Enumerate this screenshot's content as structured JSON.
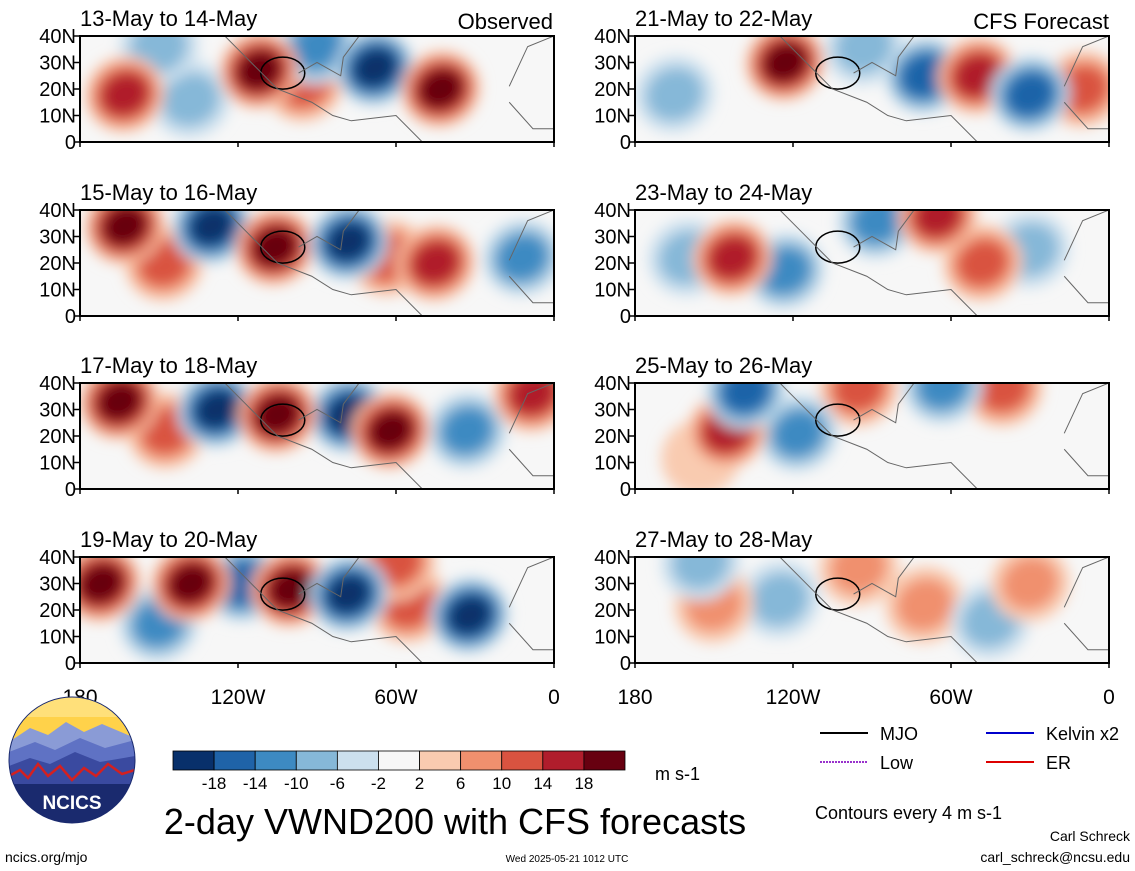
{
  "title": "2-day VWND200 with CFS forecasts",
  "left_column_label": "Observed",
  "right_column_label": "CFS Forecast",
  "logo_text": "NCICS",
  "footer": {
    "url": "ncics.org/mjo",
    "timestamp": "Wed 2025-05-21 1012 UTC",
    "author": "Carl Schreck",
    "email": "carl_schreck@ncsu.edu"
  },
  "colorbar": {
    "unit": "m s-1",
    "tick_labels": [
      "-18",
      "-14",
      "-10",
      "-6",
      "-2",
      "2",
      "6",
      "10",
      "14",
      "18"
    ],
    "colors": [
      "#08306b",
      "#1f63a8",
      "#3d8ac2",
      "#86b8d8",
      "#cce0ee",
      "#f7f7f7",
      "#f9cbb0",
      "#f0906e",
      "#d95340",
      "#b01d2c",
      "#670010"
    ]
  },
  "legend": {
    "items": [
      {
        "label": "MJO",
        "color": "#000000"
      },
      {
        "label": "Kelvin x2",
        "color": "#0000cc"
      },
      {
        "label": "Low",
        "color": "#9932cc"
      },
      {
        "label": "ER",
        "color": "#dd0000"
      }
    ],
    "note": "Contours every 4 m s-1"
  },
  "chart_data": {
    "type": "heatmap",
    "variable": "VWND200",
    "x_ticks": [
      "180",
      "120W",
      "60W",
      "0"
    ],
    "y_ticks": [
      "40N",
      "30N",
      "20N",
      "10N",
      "0"
    ],
    "xlim_deg_east": [
      180,
      360
    ],
    "ylim_deg_north": [
      0,
      40
    ],
    "panels": [
      {
        "period": "13-May to 14-May",
        "source": "Observed",
        "anomalies": [
          {
            "lon": -163,
            "lat": 18,
            "value": 16
          },
          {
            "lon": -112,
            "lat": 27,
            "value": 18
          },
          {
            "lon": -95,
            "lat": 22,
            "value": 10
          },
          {
            "lon": -68,
            "lat": 28,
            "value": -20
          },
          {
            "lon": -43,
            "lat": 20,
            "value": 20
          },
          {
            "lon": -138,
            "lat": 16,
            "value": -8
          },
          {
            "lon": -90,
            "lat": 36,
            "value": -12
          },
          {
            "lon": -150,
            "lat": 36,
            "value": -8
          }
        ]
      },
      {
        "period": "15-May to 16-May",
        "source": "Observed",
        "anomalies": [
          {
            "lon": -163,
            "lat": 34,
            "value": 18
          },
          {
            "lon": -130,
            "lat": 34,
            "value": -18
          },
          {
            "lon": -106,
            "lat": 26,
            "value": 18
          },
          {
            "lon": -78,
            "lat": 28,
            "value": -18
          },
          {
            "lon": -63,
            "lat": 22,
            "value": 10
          },
          {
            "lon": -45,
            "lat": 20,
            "value": 14
          },
          {
            "lon": -12,
            "lat": 22,
            "value": -12
          },
          {
            "lon": -148,
            "lat": 20,
            "value": 10
          }
        ]
      },
      {
        "period": "17-May to 18-May",
        "source": "Observed",
        "anomalies": [
          {
            "lon": -165,
            "lat": 33,
            "value": 20
          },
          {
            "lon": -128,
            "lat": 30,
            "value": -18
          },
          {
            "lon": -105,
            "lat": 28,
            "value": 20
          },
          {
            "lon": -78,
            "lat": 28,
            "value": -18
          },
          {
            "lon": -62,
            "lat": 22,
            "value": 20
          },
          {
            "lon": -33,
            "lat": 22,
            "value": -10
          },
          {
            "lon": -147,
            "lat": 22,
            "value": 10
          },
          {
            "lon": -8,
            "lat": 36,
            "value": 14
          }
        ]
      },
      {
        "period": "19-May to 20-May",
        "source": "Observed",
        "anomalies": [
          {
            "lon": -172,
            "lat": 30,
            "value": 18
          },
          {
            "lon": -138,
            "lat": 30,
            "value": 18
          },
          {
            "lon": -118,
            "lat": 30,
            "value": -14
          },
          {
            "lon": -100,
            "lat": 28,
            "value": 18
          },
          {
            "lon": -78,
            "lat": 26,
            "value": -18
          },
          {
            "lon": -55,
            "lat": 22,
            "value": 12
          },
          {
            "lon": -32,
            "lat": 18,
            "value": -18
          },
          {
            "lon": -150,
            "lat": 15,
            "value": -10
          },
          {
            "lon": -60,
            "lat": 38,
            "value": 12
          }
        ]
      },
      {
        "period": "21-May to 22-May",
        "source": "CFS Forecast",
        "anomalies": [
          {
            "lon": -123,
            "lat": 30,
            "value": 18
          },
          {
            "lon": -70,
            "lat": 25,
            "value": -16
          },
          {
            "lon": -50,
            "lat": 25,
            "value": 16
          },
          {
            "lon": -30,
            "lat": 18,
            "value": -16
          },
          {
            "lon": -93,
            "lat": 36,
            "value": -8
          },
          {
            "lon": -10,
            "lat": 20,
            "value": 10
          },
          {
            "lon": -165,
            "lat": 18,
            "value": -6
          }
        ]
      },
      {
        "period": "23-May to 24-May",
        "source": "CFS Forecast",
        "anomalies": [
          {
            "lon": -143,
            "lat": 22,
            "value": 16
          },
          {
            "lon": -123,
            "lat": 17,
            "value": -10
          },
          {
            "lon": -65,
            "lat": 38,
            "value": 14
          },
          {
            "lon": -48,
            "lat": 20,
            "value": 10
          },
          {
            "lon": -160,
            "lat": 22,
            "value": -6
          },
          {
            "lon": -88,
            "lat": 36,
            "value": -12
          },
          {
            "lon": -30,
            "lat": 25,
            "value": -6
          }
        ]
      },
      {
        "period": "25-May to 26-May",
        "source": "CFS Forecast",
        "anomalies": [
          {
            "lon": -145,
            "lat": 22,
            "value": 14
          },
          {
            "lon": -118,
            "lat": 21,
            "value": -12
          },
          {
            "lon": -138,
            "lat": 37,
            "value": -14
          },
          {
            "lon": -95,
            "lat": 38,
            "value": 10
          },
          {
            "lon": -63,
            "lat": 39,
            "value": -12
          },
          {
            "lon": -40,
            "lat": 38,
            "value": 10
          },
          {
            "lon": -155,
            "lat": 12,
            "value": 4
          }
        ]
      },
      {
        "period": "27-May to 28-May",
        "source": "CFS Forecast",
        "anomalies": [
          {
            "lon": -150,
            "lat": 22,
            "value": 8
          },
          {
            "lon": -125,
            "lat": 24,
            "value": -6
          },
          {
            "lon": -95,
            "lat": 36,
            "value": 8
          },
          {
            "lon": -70,
            "lat": 22,
            "value": 6
          },
          {
            "lon": -45,
            "lat": 16,
            "value": -6
          },
          {
            "lon": -155,
            "lat": 38,
            "value": -8
          },
          {
            "lon": -30,
            "lat": 30,
            "value": 6
          }
        ]
      }
    ]
  }
}
